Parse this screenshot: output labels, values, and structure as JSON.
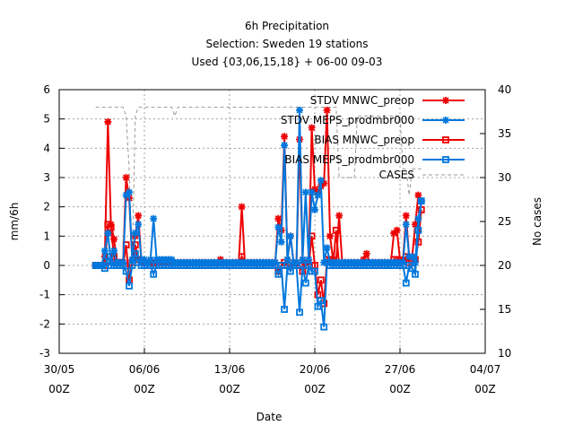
{
  "chart_data": {
    "type": "line",
    "title": [
      "6h Precipitation",
      "Selection: Sweden     19 stations",
      "Used {03,06,15,18} + 06-00 09-03"
    ],
    "xlabel": "Date",
    "ylabel": "mm/6h",
    "y2label": "No cases",
    "ylim": [
      -3,
      6
    ],
    "y2lim": [
      10,
      40
    ],
    "xlim": [
      "2023-05-30T00:00",
      "2023-07-04T00:00"
    ],
    "yticks": [
      "-3",
      "-2",
      "-1",
      "0",
      "1",
      "2",
      "3",
      "4",
      "5",
      "6"
    ],
    "y2ticks": [
      "10",
      "15",
      "20",
      "25",
      "30",
      "35",
      "40"
    ],
    "xticks": [
      {
        "date": "2023-05-30T00:00",
        "line1": "30/05",
        "line2": "00Z"
      },
      {
        "date": "2023-06-06T00:00",
        "line1": "06/06",
        "line2": "00Z"
      },
      {
        "date": "2023-06-13T00:00",
        "line1": "13/06",
        "line2": "00Z"
      },
      {
        "date": "2023-06-20T00:00",
        "line1": "20/06",
        "line2": "00Z"
      },
      {
        "date": "2023-06-27T00:00",
        "line1": "27/06",
        "line2": "00Z"
      },
      {
        "date": "2023-07-04T00:00",
        "line1": "04/07",
        "line2": "00Z"
      }
    ],
    "grid": true,
    "legend_position": "top-right",
    "start": "2023-06-02T00:00",
    "step_hours": 6,
    "series": [
      {
        "name": "STDV MNWC_preop",
        "color": "#ee0000",
        "marker": "star",
        "values": [
          0,
          0,
          0,
          0.3,
          4.9,
          1.4,
          0.9,
          0.1,
          0.1,
          0.1,
          3.0,
          2.3,
          0.2,
          1.0,
          1.7,
          0.2,
          0.1,
          0.1,
          0.1,
          0.1,
          0.1,
          0.1,
          0.1,
          0.1,
          0.1,
          0.1,
          0.1,
          0.1,
          0.1,
          0.1,
          0.1,
          0.1,
          0.1,
          0.1,
          0.1,
          0.1,
          0.1,
          0.1,
          0.1,
          0.1,
          0.1,
          0.2,
          0.1,
          0.1,
          0.1,
          0.1,
          0.1,
          0.1,
          2.0,
          0.1,
          0.1,
          0.1,
          0.1,
          0.1,
          0.1,
          0.1,
          0.1,
          0.1,
          0.1,
          0.1,
          1.6,
          1.2,
          4.4,
          0.2,
          1.0,
          0.1,
          0.1,
          4.3,
          0.2,
          0.1,
          0.1,
          4.7,
          2.6,
          2.5,
          2.7,
          2.8,
          5.3,
          1.0,
          0.2,
          0.1,
          1.7,
          0.1,
          0.1,
          0.1,
          0.1,
          0.1,
          0.1,
          0.1,
          0.2,
          0.4,
          0.1,
          0.1,
          0.1,
          0.1,
          0.1,
          0.1,
          0.1,
          0.1,
          1.1,
          1.2,
          0.2,
          0.2,
          1.7,
          0.3,
          0.3,
          1.4,
          2.4,
          2.2
        ]
      },
      {
        "name": "STDV MEPS_prodmbr000",
        "color": "#0077dd",
        "marker": "star",
        "values": [
          0,
          0,
          0,
          0.5,
          1.1,
          0.1,
          0.5,
          0.1,
          0.1,
          0.1,
          2.4,
          2.5,
          0.2,
          1.1,
          1.4,
          0.2,
          0.2,
          0.1,
          0.2,
          1.6,
          0.2,
          0.2,
          0.2,
          0.2,
          0.2,
          0.2,
          0.1,
          0.1,
          0.1,
          0.1,
          0.1,
          0.1,
          0.1,
          0.1,
          0.1,
          0.1,
          0.1,
          0.1,
          0.1,
          0.1,
          0.1,
          0.1,
          0.1,
          0.1,
          0.1,
          0.1,
          0.1,
          0.1,
          0.1,
          0.1,
          0.1,
          0.1,
          0.1,
          0.1,
          0.1,
          0.1,
          0.1,
          0.1,
          0.1,
          0.1,
          1.3,
          0.8,
          4.1,
          0.2,
          1.0,
          0.1,
          0.1,
          5.3,
          0.2,
          2.5,
          0.2,
          2.5,
          1.9,
          2.4,
          2.9,
          0.1,
          0.6,
          0.1,
          0.1,
          0.1,
          0.1,
          0.1,
          0.1,
          0.1,
          0.1,
          0.1,
          0.1,
          0.1,
          0.1,
          0.1,
          0.1,
          0.1,
          0.1,
          0.1,
          0.1,
          0.1,
          0.1,
          0.1,
          0.1,
          0.1,
          0.1,
          0.1,
          1.4,
          0.3,
          0.3,
          0.1,
          1.6,
          2.2
        ]
      },
      {
        "name": "BIAS MNWC_preop",
        "color": "#ee0000",
        "marker": "square",
        "values": [
          0,
          0,
          0,
          0,
          1.4,
          1.3,
          0.3,
          0.1,
          0.1,
          0,
          0.7,
          -0.5,
          0.1,
          0.7,
          0.2,
          0.1,
          0.1,
          0,
          0,
          0,
          0,
          0,
          0,
          0,
          0,
          0,
          0,
          0,
          0,
          0,
          0,
          0,
          0,
          0,
          0,
          0,
          0,
          0,
          0,
          0,
          0,
          0,
          0,
          0,
          0,
          0,
          0,
          0,
          0.3,
          0,
          0,
          0,
          0,
          0,
          0,
          0,
          0,
          0,
          0,
          0,
          -0.2,
          0,
          0.1,
          0,
          0,
          0,
          0,
          0,
          -0.2,
          0.1,
          0,
          1.0,
          0,
          -1.0,
          -0.5,
          -1.3,
          0.2,
          0.2,
          0,
          1.2,
          0,
          0,
          0,
          0,
          0,
          0,
          0,
          0,
          0,
          0.1,
          0,
          0,
          0,
          0,
          0,
          0,
          0,
          0,
          0.2,
          0.2,
          0,
          0,
          0.3,
          0.1,
          0.1,
          0.2,
          0.8,
          1.9
        ]
      },
      {
        "name": "BIAS MEPS_prodmbr000",
        "color": "#0077dd",
        "marker": "square",
        "values": [
          0,
          0,
          0,
          -0.1,
          0.3,
          0,
          0,
          0,
          0,
          0,
          -0.2,
          -0.7,
          0,
          0.4,
          0.1,
          0,
          0,
          0,
          0,
          -0.3,
          0,
          0,
          0,
          0,
          0,
          0,
          0,
          0,
          0,
          0,
          0,
          0,
          0,
          0,
          0,
          0,
          0,
          0,
          0,
          0,
          0,
          0,
          0,
          0,
          0,
          0,
          0,
          0,
          0,
          0,
          0,
          0,
          0,
          0,
          0,
          0,
          0,
          0,
          0,
          0,
          -0.3,
          0,
          -1.5,
          0,
          -0.2,
          0,
          0,
          -1.6,
          0,
          -0.6,
          0,
          -0.2,
          -0.2,
          -1.4,
          -1.2,
          -2.1,
          0.1,
          0,
          0,
          0,
          0,
          0,
          0,
          0,
          0,
          0,
          0,
          0,
          0,
          0,
          0,
          0,
          0,
          0,
          0,
          0,
          0,
          0,
          0,
          0,
          0,
          0,
          -0.6,
          0,
          -0.1,
          -0.3,
          1.2,
          2.2
        ]
      },
      {
        "name": "CASES",
        "color": "#999999",
        "marker": "none",
        "axis": "y2",
        "values": [
          38,
          38,
          38,
          38,
          38,
          38,
          38,
          38,
          38,
          38,
          37,
          31,
          20,
          37,
          38,
          38,
          38,
          38,
          38,
          38,
          38,
          38,
          38,
          38,
          38,
          38,
          37,
          38,
          38,
          38,
          38,
          38,
          38,
          38,
          38,
          38,
          38,
          38,
          38,
          38,
          38,
          38,
          38,
          38,
          38,
          38,
          38,
          38,
          38,
          38,
          38,
          38,
          38,
          38,
          38,
          38,
          38,
          38,
          38,
          38,
          38,
          38,
          38,
          38,
          38,
          38,
          38,
          38,
          38,
          38,
          38,
          38,
          38,
          38,
          38,
          38,
          38,
          38,
          38,
          38,
          30,
          30,
          30,
          30,
          30,
          30,
          37,
          37,
          37,
          37,
          37,
          37,
          37,
          37,
          37,
          37,
          37,
          37,
          37,
          37,
          37,
          31,
          31,
          28,
          31,
          31,
          31,
          31
        ]
      }
    ]
  }
}
